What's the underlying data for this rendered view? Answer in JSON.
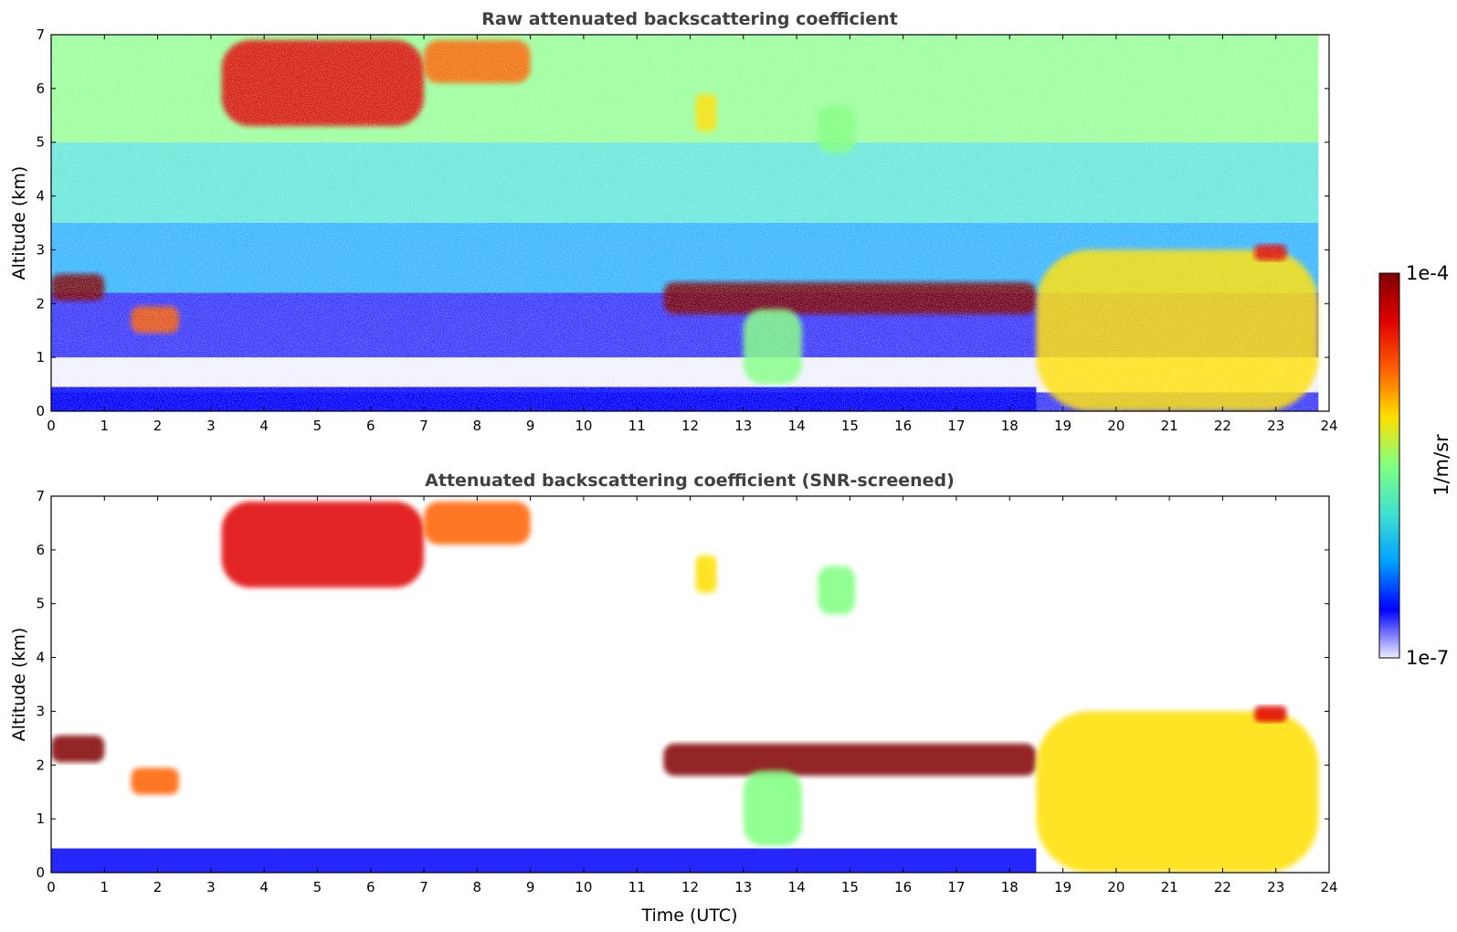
{
  "chart_data": [
    {
      "type": "heatmap",
      "title": "Raw attenuated backscattering coefficient",
      "xlabel": "",
      "ylabel": "Altitude (km)",
      "xlim": [
        0,
        24
      ],
      "ylim": [
        0,
        7
      ],
      "xticks": [
        "0",
        "1",
        "2",
        "3",
        "4",
        "5",
        "6",
        "7",
        "8",
        "9",
        "10",
        "11",
        "12",
        "13",
        "14",
        "15",
        "16",
        "17",
        "18",
        "19",
        "20",
        "21",
        "22",
        "23",
        "24"
      ],
      "yticks": [
        "0",
        "1",
        "2",
        "3",
        "4",
        "5",
        "6",
        "7"
      ],
      "screened": false
    },
    {
      "type": "heatmap",
      "title": "Attenuated backscattering coefficient (SNR-screened)",
      "xlabel": "Time (UTC)",
      "ylabel": "Altitude (km)",
      "xlim": [
        0,
        24
      ],
      "ylim": [
        0,
        7
      ],
      "xticks": [
        "0",
        "1",
        "2",
        "3",
        "4",
        "5",
        "6",
        "7",
        "8",
        "9",
        "10",
        "11",
        "12",
        "13",
        "14",
        "15",
        "16",
        "17",
        "18",
        "19",
        "20",
        "21",
        "22",
        "23",
        "24"
      ],
      "yticks": [
        "0",
        "1",
        "2",
        "3",
        "4",
        "5",
        "6",
        "7"
      ],
      "screened": true
    }
  ],
  "colorbar": {
    "label": "1/m/sr",
    "max_label": "1e-4",
    "min_label": "1e-7",
    "scale": "log",
    "colormap": "jet",
    "colors": [
      "#eeeeff",
      "#0000ff",
      "#00a0ff",
      "#40e0d0",
      "#80ff80",
      "#ffe000",
      "#ff6000",
      "#e00000",
      "#800000"
    ]
  },
  "features": [
    {
      "name": "thin cloud 0-1h",
      "t0": 0.0,
      "t1": 1.0,
      "z0": 2.05,
      "z1": 2.55,
      "level": 0.95
    },
    {
      "name": "cloud 1.5-2.4h",
      "t0": 1.5,
      "t1": 2.4,
      "z0": 1.45,
      "z1": 1.95,
      "level": 0.8
    },
    {
      "name": "upper layer 3-7h",
      "t0": 3.2,
      "t1": 7.0,
      "z0": 5.3,
      "z1": 6.9,
      "level": 0.85
    },
    {
      "name": "cloud 7-9h",
      "t0": 7.0,
      "t1": 9.0,
      "z0": 6.1,
      "z1": 6.9,
      "level": 0.7
    },
    {
      "name": "cloud 12.2h",
      "t0": 12.1,
      "t1": 12.5,
      "z0": 5.2,
      "z1": 5.9,
      "level": 0.65
    },
    {
      "name": "cloud 14.5-15h",
      "t0": 14.4,
      "t1": 15.1,
      "z0": 4.8,
      "z1": 5.7,
      "level": 0.55
    },
    {
      "name": "layer 11.5-18.5h",
      "t0": 11.5,
      "t1": 18.5,
      "z0": 1.8,
      "z1": 2.4,
      "level": 0.95
    },
    {
      "name": "virga 13-14h",
      "t0": 13.0,
      "t1": 14.1,
      "z0": 0.5,
      "z1": 1.9,
      "level": 0.45
    },
    {
      "name": "boundary layer 18.5-24h",
      "t0": 18.5,
      "t1": 23.8,
      "z0": 0.0,
      "z1": 3.0,
      "level": 0.65
    },
    {
      "name": "cloud 22.8-23.2h",
      "t0": 22.6,
      "t1": 23.2,
      "z0": 2.8,
      "z1": 3.1,
      "level": 0.85
    }
  ]
}
